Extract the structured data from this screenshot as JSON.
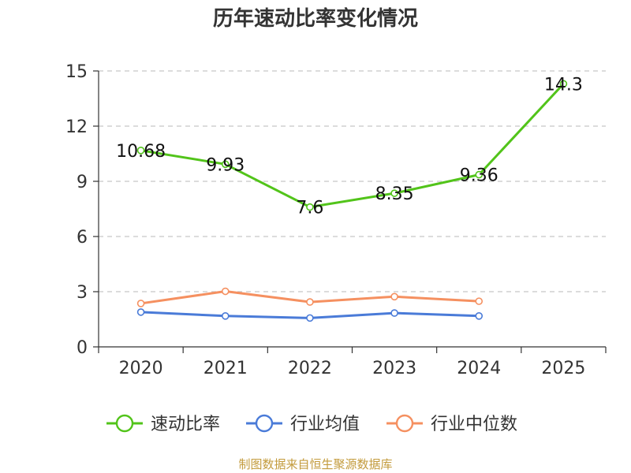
{
  "chart_data": {
    "type": "line",
    "title": "历年速动比率变化情况",
    "x": [
      "2020",
      "2021",
      "2022",
      "2023",
      "2024",
      "2025"
    ],
    "ylim": [
      0,
      15
    ],
    "yticks": [
      0,
      3,
      6,
      9,
      12,
      15
    ],
    "grid": true,
    "legend_position": "bottom",
    "series": [
      {
        "name": "速动比率",
        "color": "#52c41a",
        "values": [
          10.68,
          9.93,
          7.6,
          8.35,
          9.36,
          14.3
        ],
        "labels": [
          "10.68",
          "9.93",
          "7.6",
          "8.35",
          "9.36",
          "14.3"
        ]
      },
      {
        "name": "行业均值",
        "color": "#4a7bd8",
        "values": [
          1.89,
          1.68,
          1.57,
          1.84,
          1.68,
          null
        ]
      },
      {
        "name": "行业中位数",
        "color": "#f59060",
        "values": [
          2.36,
          3.02,
          2.44,
          2.73,
          2.48,
          null
        ]
      }
    ],
    "source": "制图数据来自恒生聚源数据库"
  }
}
